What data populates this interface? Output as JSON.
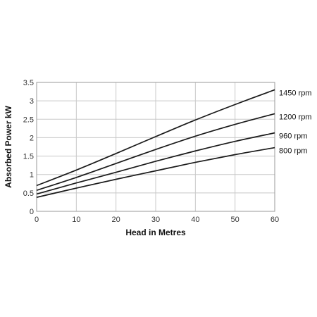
{
  "chart_data": {
    "type": "line",
    "xlabel": "Head in Metres",
    "ylabel": "Absorbed Power kW",
    "xlim": [
      0,
      60
    ],
    "ylim": [
      0,
      3.5
    ],
    "x_ticks": [
      0,
      10,
      20,
      30,
      40,
      50,
      60
    ],
    "y_ticks": [
      0,
      0.5,
      1,
      1.5,
      2,
      2.5,
      3,
      3.5
    ],
    "grid": true,
    "series": [
      {
        "name": "1450 rpm",
        "x": [
          0,
          10,
          20,
          30,
          40,
          50,
          60
        ],
        "y": [
          0.7,
          1.12,
          1.57,
          2.03,
          2.48,
          2.9,
          3.3
        ]
      },
      {
        "name": "1200 rpm",
        "x": [
          0,
          10,
          20,
          30,
          40,
          50,
          60
        ],
        "y": [
          0.57,
          0.92,
          1.3,
          1.68,
          2.04,
          2.36,
          2.65
        ]
      },
      {
        "name": "960 rpm",
        "x": [
          0,
          10,
          20,
          30,
          40,
          50,
          60
        ],
        "y": [
          0.47,
          0.77,
          1.06,
          1.36,
          1.64,
          1.9,
          2.13
        ]
      },
      {
        "name": "800 rpm",
        "x": [
          0,
          10,
          20,
          30,
          40,
          50,
          60
        ],
        "y": [
          0.38,
          0.63,
          0.87,
          1.1,
          1.33,
          1.54,
          1.73
        ]
      }
    ]
  }
}
